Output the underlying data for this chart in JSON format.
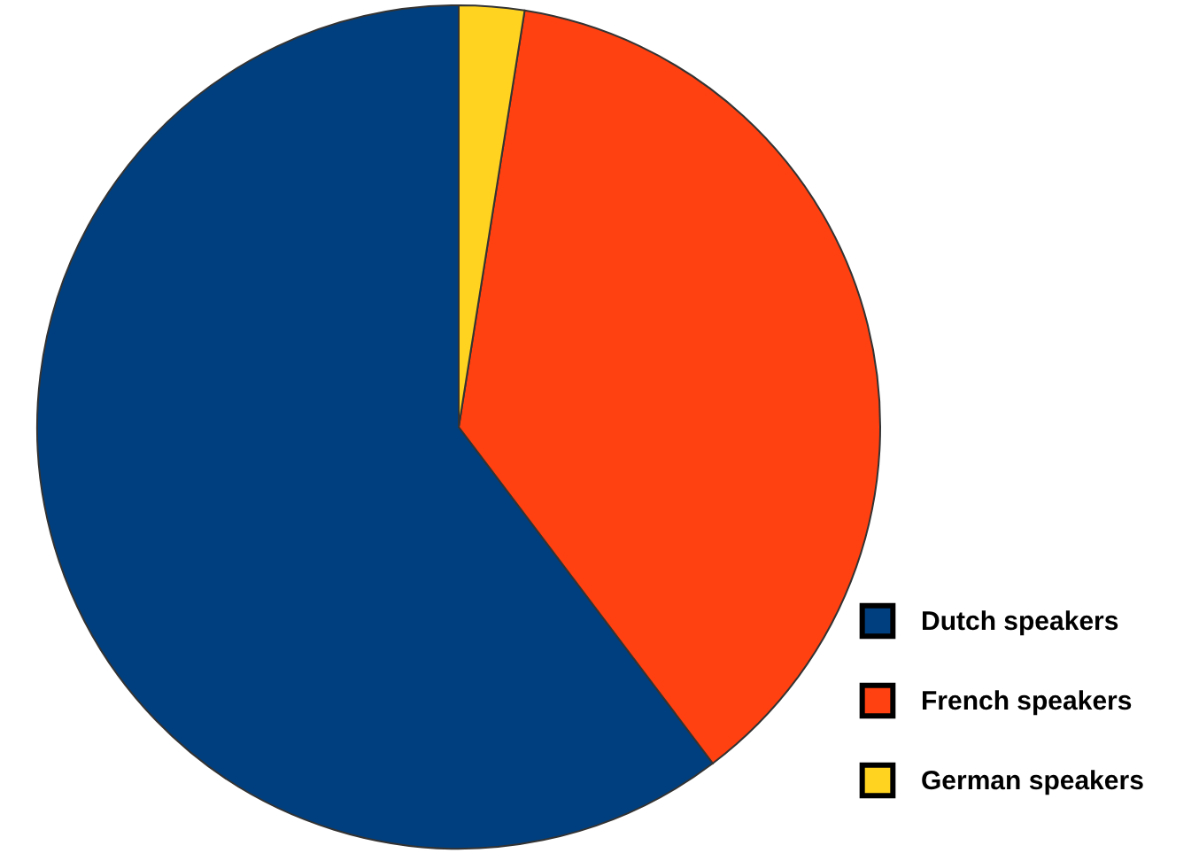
{
  "chart_data": {
    "type": "pie",
    "categories": [
      "Dutch speakers",
      "French speakers",
      "German speakers"
    ],
    "values": [
      60.3,
      37.2,
      2.5
    ],
    "colors": [
      "#003f7f",
      "#ff4010",
      "#ffd320"
    ],
    "legend": "bottom right"
  }
}
